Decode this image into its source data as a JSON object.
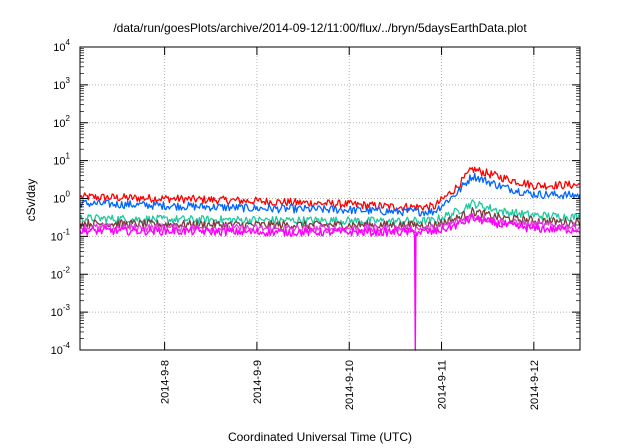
{
  "chart_data": {
    "type": "line",
    "title": "/data/run/goesPlots/archive/2014-09-12/11:00/flux/../bryn/5daysEarthData.plot",
    "xlabel": "Coordinated Universal Time (UTC)",
    "ylabel": "cSv/day",
    "yscale": "log",
    "ylim": [
      0.0001,
      10000
    ],
    "xlim": [
      "2014-09-07T02:00",
      "2014-09-12T12:00"
    ],
    "grid": true,
    "legend": "none",
    "y_ticks": [
      {
        "base": "10",
        "exp": "-4"
      },
      {
        "base": "10",
        "exp": "-3"
      },
      {
        "base": "10",
        "exp": "-2"
      },
      {
        "base": "10",
        "exp": "-1"
      },
      {
        "base": "10",
        "exp": "0"
      },
      {
        "base": "10",
        "exp": "1"
      },
      {
        "base": "10",
        "exp": "2"
      },
      {
        "base": "10",
        "exp": "3"
      },
      {
        "base": "10",
        "exp": "4"
      }
    ],
    "x_ticks": [
      "2014-9-8",
      "2014-9-9",
      "2014-9-10",
      "2014-9-11",
      "2014-9-12"
    ],
    "x_tick_dates": [
      "2014-09-08T00:00",
      "2014-09-09T00:00",
      "2014-09-10T00:00",
      "2014-09-11T00:00",
      "2014-09-12T00:00"
    ],
    "series": [
      {
        "color": "#ff0000",
        "x": [
          "2014-09-07T02:00",
          "2014-09-08T00:00",
          "2014-09-09T00:00",
          "2014-09-10T00:00",
          "2014-09-10T12:00",
          "2014-09-10T22:00",
          "2014-09-11T04:00",
          "2014-09-11T08:00",
          "2014-09-11T16:00",
          "2014-09-12T00:00",
          "2014-09-12T12:00"
        ],
        "y": [
          1.1,
          1.0,
          0.85,
          0.7,
          0.6,
          0.6,
          2.0,
          6.0,
          3.5,
          2.2,
          2.3
        ]
      },
      {
        "color": "#0066ff",
        "x": [
          "2014-09-07T02:00",
          "2014-09-08T00:00",
          "2014-09-09T00:00",
          "2014-09-10T00:00",
          "2014-09-10T12:00",
          "2014-09-10T22:00",
          "2014-09-11T04:00",
          "2014-09-11T08:00",
          "2014-09-11T16:00",
          "2014-09-12T00:00",
          "2014-09-12T12:00"
        ],
        "y": [
          0.75,
          0.65,
          0.55,
          0.5,
          0.45,
          0.45,
          1.4,
          4.0,
          2.0,
          1.3,
          1.2
        ]
      },
      {
        "color": "#20c9a0",
        "x": [
          "2014-09-07T02:00",
          "2014-09-08T00:00",
          "2014-09-09T00:00",
          "2014-09-10T00:00",
          "2014-09-10T12:00",
          "2014-09-10T22:00",
          "2014-09-11T04:00",
          "2014-09-11T08:00",
          "2014-09-11T16:00",
          "2014-09-12T00:00",
          "2014-09-12T12:00"
        ],
        "y": [
          0.3,
          0.28,
          0.27,
          0.26,
          0.25,
          0.26,
          0.45,
          0.75,
          0.45,
          0.36,
          0.32
        ]
      },
      {
        "color": "#7a3b3b",
        "x": [
          "2014-09-07T02:00",
          "2014-09-08T00:00",
          "2014-09-09T00:00",
          "2014-09-10T00:00",
          "2014-09-10T12:00",
          "2014-09-10T22:00",
          "2014-09-11T04:00",
          "2014-09-11T08:00",
          "2014-09-11T16:00",
          "2014-09-12T00:00",
          "2014-09-12T12:00"
        ],
        "y": [
          0.22,
          0.21,
          0.2,
          0.2,
          0.2,
          0.2,
          0.3,
          0.45,
          0.3,
          0.26,
          0.23
        ]
      },
      {
        "color": "#e040e0",
        "x": [
          "2014-09-07T02:00",
          "2014-09-08T00:00",
          "2014-09-09T00:00",
          "2014-09-10T00:00",
          "2014-09-10T12:00",
          "2014-09-10T22:00",
          "2014-09-11T04:00",
          "2014-09-11T08:00",
          "2014-09-11T16:00",
          "2014-09-12T00:00",
          "2014-09-12T12:00"
        ],
        "y": [
          0.17,
          0.17,
          0.16,
          0.16,
          0.16,
          0.16,
          0.24,
          0.35,
          0.24,
          0.2,
          0.18
        ]
      },
      {
        "color": "#ff00ff",
        "x": [
          "2014-09-07T02:00",
          "2014-09-08T00:00",
          "2014-09-09T00:00",
          "2014-09-10T00:00",
          "2014-09-10T12:00",
          "2014-09-10T17:00",
          "2014-09-10T17:10",
          "2014-09-10T17:20",
          "2014-09-10T22:00",
          "2014-09-11T04:00",
          "2014-09-11T08:00",
          "2014-09-11T16:00",
          "2014-09-12T00:00",
          "2014-09-12T12:00"
        ],
        "y": [
          0.14,
          0.14,
          0.13,
          0.13,
          0.13,
          0.13,
          0.0001,
          0.13,
          0.13,
          0.2,
          0.3,
          0.2,
          0.16,
          0.15
        ]
      }
    ]
  }
}
